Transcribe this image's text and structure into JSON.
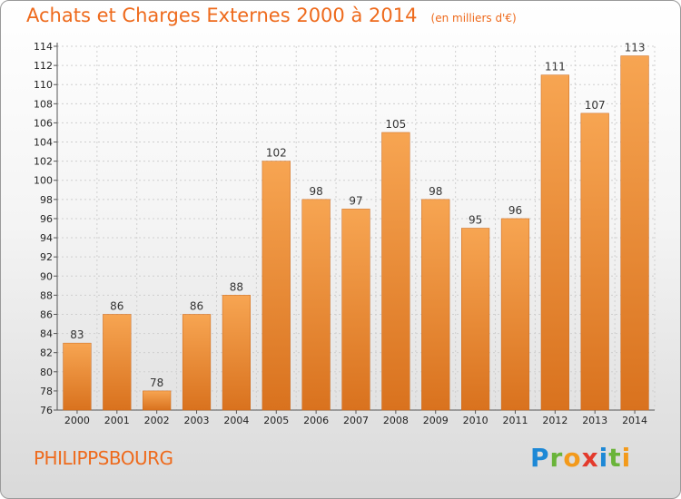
{
  "chart_data": {
    "type": "bar",
    "title": "Achats et Charges Externes 2000 à 2014",
    "subtitle": "(en milliers d'€)",
    "categories": [
      "2000",
      "2001",
      "2002",
      "2003",
      "2004",
      "2005",
      "2006",
      "2007",
      "2008",
      "2009",
      "2010",
      "2011",
      "2012",
      "2013",
      "2014"
    ],
    "values": [
      83,
      86,
      78,
      86,
      88,
      102,
      98,
      97,
      105,
      98,
      95,
      96,
      111,
      107,
      113
    ],
    "ylim": [
      76,
      114
    ],
    "yticks": [
      76,
      78,
      80,
      82,
      84,
      86,
      88,
      90,
      92,
      94,
      96,
      98,
      100,
      102,
      104,
      106,
      108,
      110,
      112,
      114
    ],
    "grid": true,
    "bar_color": "#f0923a"
  },
  "footer": {
    "city": "PHILIPPSBOURG",
    "logo": [
      "P",
      "r",
      "o",
      "x",
      "i",
      "t",
      "i"
    ]
  }
}
